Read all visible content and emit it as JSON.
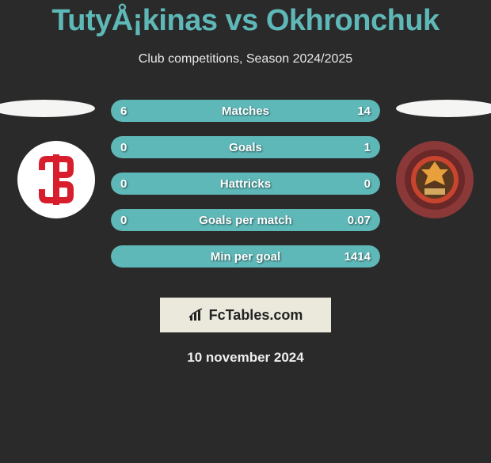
{
  "title": "TutyÅ¡kinas vs Okhronchuk",
  "subtitle": "Club competitions, Season 2024/2025",
  "colors": {
    "accent": "#5fb8b8",
    "background": "#2a2a2a",
    "bar_bg": "#3a3a3a",
    "brand_box_bg": "#ebe8dc",
    "logo_left_main": "#d81e2c",
    "logo_right_main": "#8a3838",
    "logo_right_inner": "#c8442e"
  },
  "stats": [
    {
      "label": "Matches",
      "left_val": "6",
      "right_val": "14",
      "left_pct": 30,
      "right_pct": 70,
      "fill_mode": "both"
    },
    {
      "label": "Goals",
      "left_val": "0",
      "right_val": "1",
      "left_pct": 0,
      "right_pct": 100,
      "fill_mode": "right-full"
    },
    {
      "label": "Hattricks",
      "left_val": "0",
      "right_val": "0",
      "left_pct": 50,
      "right_pct": 50,
      "fill_mode": "both"
    },
    {
      "label": "Goals per match",
      "left_val": "0",
      "right_val": "0.07",
      "left_pct": 0,
      "right_pct": 100,
      "fill_mode": "right-full"
    },
    {
      "label": "Min per goal",
      "left_val": "",
      "right_val": "1414",
      "left_pct": 0,
      "right_pct": 100,
      "fill_mode": "right-full"
    }
  ],
  "brand": "FcTables.com",
  "date": "10 november 2024"
}
